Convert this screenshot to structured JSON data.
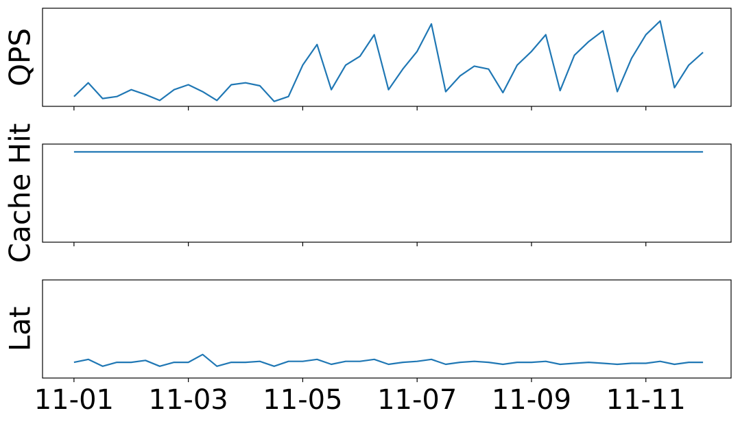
{
  "chart_data": [
    {
      "type": "line",
      "ylabel": "QPS",
      "color": "#1f77b4",
      "x": [
        0,
        0.25,
        0.5,
        0.75,
        1,
        1.25,
        1.5,
        1.75,
        2,
        2.25,
        2.5,
        2.75,
        3,
        3.25,
        3.5,
        3.75,
        4,
        4.25,
        4.5,
        4.75,
        5,
        5.25,
        5.5,
        5.75,
        6,
        6.25,
        6.5,
        6.75,
        7,
        7.25,
        7.5,
        7.75,
        8,
        8.25,
        8.5,
        8.75,
        9,
        9.25,
        9.5,
        9.75,
        10,
        10.25,
        10.5,
        10.75,
        11
      ],
      "values": [
        0.1,
        0.24,
        0.08,
        0.1,
        0.17,
        0.12,
        0.06,
        0.17,
        0.22,
        0.15,
        0.06,
        0.22,
        0.24,
        0.21,
        0.05,
        0.1,
        0.42,
        0.63,
        0.17,
        0.42,
        0.51,
        0.73,
        0.17,
        0.38,
        0.56,
        0.84,
        0.15,
        0.31,
        0.41,
        0.38,
        0.14,
        0.42,
        0.56,
        0.73,
        0.16,
        0.52,
        0.66,
        0.77,
        0.15,
        0.49,
        0.73,
        0.87,
        0.19,
        0.42,
        0.55
      ],
      "xlim": [
        -0.55,
        11.49
      ],
      "ylim": [
        0,
        1
      ]
    },
    {
      "type": "line",
      "ylabel": "Cache Hit",
      "color": "#1f77b4",
      "x": [
        0,
        0.25,
        0.5,
        0.75,
        1,
        1.25,
        1.5,
        1.75,
        2,
        2.25,
        2.5,
        2.75,
        3,
        3.25,
        3.5,
        3.75,
        4,
        4.25,
        4.5,
        4.75,
        5,
        5.25,
        5.5,
        5.75,
        6,
        6.25,
        6.5,
        6.75,
        7,
        7.25,
        7.5,
        7.75,
        8,
        8.25,
        8.5,
        8.75,
        9,
        9.25,
        9.5,
        9.75,
        10,
        10.25,
        10.5,
        10.75,
        11
      ],
      "values": [
        0.92,
        0.92,
        0.92,
        0.92,
        0.92,
        0.92,
        0.92,
        0.92,
        0.92,
        0.92,
        0.92,
        0.92,
        0.92,
        0.92,
        0.92,
        0.92,
        0.92,
        0.92,
        0.92,
        0.92,
        0.92,
        0.92,
        0.92,
        0.92,
        0.92,
        0.92,
        0.92,
        0.92,
        0.92,
        0.92,
        0.92,
        0.92,
        0.92,
        0.92,
        0.92,
        0.92,
        0.92,
        0.92,
        0.92,
        0.92,
        0.92,
        0.92,
        0.92,
        0.92,
        0.92
      ],
      "xlim": [
        -0.55,
        11.49
      ],
      "ylim": [
        0,
        1
      ]
    },
    {
      "type": "line",
      "ylabel": "Lat",
      "color": "#1f77b4",
      "x": [
        0,
        0.25,
        0.5,
        0.75,
        1,
        1.25,
        1.5,
        1.75,
        2,
        2.25,
        2.5,
        2.75,
        3,
        3.25,
        3.5,
        3.75,
        4,
        4.25,
        4.5,
        4.75,
        5,
        5.25,
        5.5,
        5.75,
        6,
        6.25,
        6.5,
        6.75,
        7,
        7.25,
        7.5,
        7.75,
        8,
        8.25,
        8.5,
        8.75,
        9,
        9.25,
        9.5,
        9.75,
        10,
        10.25,
        10.5,
        10.75,
        11
      ],
      "values": [
        0.16,
        0.19,
        0.12,
        0.16,
        0.16,
        0.18,
        0.12,
        0.16,
        0.16,
        0.24,
        0.12,
        0.16,
        0.16,
        0.17,
        0.12,
        0.17,
        0.17,
        0.19,
        0.14,
        0.17,
        0.17,
        0.19,
        0.14,
        0.16,
        0.17,
        0.19,
        0.14,
        0.16,
        0.17,
        0.16,
        0.14,
        0.16,
        0.16,
        0.17,
        0.14,
        0.15,
        0.16,
        0.15,
        0.14,
        0.15,
        0.15,
        0.17,
        0.14,
        0.16,
        0.16
      ],
      "xlim": [
        -0.55,
        11.49
      ],
      "ylim": [
        0,
        1
      ],
      "xticks": [
        {
          "value": 0,
          "label": "11-01"
        },
        {
          "value": 2,
          "label": "11-03"
        },
        {
          "value": 4,
          "label": "11-05"
        },
        {
          "value": 6,
          "label": "11-07"
        },
        {
          "value": 8,
          "label": "11-09"
        },
        {
          "value": 10,
          "label": "11-11"
        }
      ]
    }
  ]
}
